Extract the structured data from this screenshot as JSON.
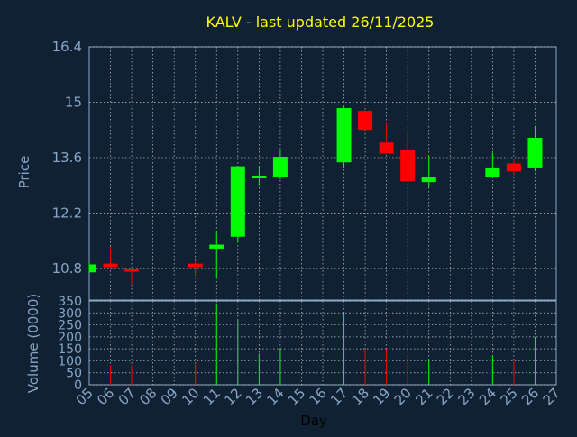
{
  "chart_data": {
    "type": "candlestick",
    "title": "KALV - last updated 26/11/2025",
    "xlabel": "Day",
    "ylabel_price": "Price",
    "ylabel_volume": "Volume (0000)",
    "x_ticks": [
      "05",
      "06",
      "07",
      "08",
      "09",
      "10",
      "11",
      "12",
      "13",
      "14",
      "15",
      "16",
      "17",
      "18",
      "19",
      "20",
      "21",
      "22",
      "23",
      "24",
      "25",
      "26",
      "27"
    ],
    "price_axis": {
      "ylim": [
        10.0,
        16.4
      ],
      "ticks": [
        "16.4",
        "15",
        "13.6",
        "12.2",
        "10.8"
      ]
    },
    "volume_axis": {
      "ylim": [
        0,
        350
      ],
      "ticks": [
        "350",
        "300",
        "250",
        "200",
        "150",
        "100",
        "50",
        "0"
      ]
    },
    "grid": true,
    "candles": [
      {
        "day": "05",
        "open": 10.7,
        "high": 10.95,
        "low": 10.7,
        "close": 10.9,
        "volume": 0
      },
      {
        "day": "06",
        "open": 10.92,
        "high": 11.35,
        "low": 10.82,
        "close": 10.83,
        "volume": 80
      },
      {
        "day": "07",
        "open": 10.78,
        "high": 10.8,
        "low": 10.4,
        "close": 10.72,
        "volume": 80
      },
      {
        "day": "10",
        "open": 10.92,
        "high": 10.98,
        "low": 10.6,
        "close": 10.83,
        "volume": 90
      },
      {
        "day": "11",
        "open": 11.3,
        "high": 11.75,
        "low": 10.55,
        "close": 11.4,
        "volume": 340
      },
      {
        "day": "12",
        "open": 11.6,
        "high": 13.38,
        "low": 11.45,
        "close": 13.38,
        "volume": 270
      },
      {
        "day": "13",
        "open": 13.1,
        "high": 13.38,
        "low": 12.9,
        "close": 13.12,
        "volume": 130
      },
      {
        "day": "14",
        "open": 13.12,
        "high": 13.8,
        "low": 13.05,
        "close": 13.62,
        "volume": 150
      },
      {
        "day": "17",
        "open": 13.48,
        "high": 14.9,
        "low": 13.35,
        "close": 14.85,
        "volume": 300
      },
      {
        "day": "18",
        "open": 14.78,
        "high": 14.8,
        "low": 14.25,
        "close": 14.3,
        "volume": 150
      },
      {
        "day": "19",
        "open": 13.98,
        "high": 14.5,
        "low": 13.7,
        "close": 13.7,
        "volume": 150
      },
      {
        "day": "20",
        "open": 13.8,
        "high": 14.2,
        "low": 13.0,
        "close": 13.0,
        "volume": 120
      },
      {
        "day": "21",
        "open": 12.98,
        "high": 13.65,
        "low": 12.85,
        "close": 13.12,
        "volume": 100
      },
      {
        "day": "24",
        "open": 13.12,
        "high": 13.72,
        "low": 13.08,
        "close": 13.35,
        "volume": 120
      },
      {
        "day": "25",
        "open": 13.45,
        "high": 13.52,
        "low": 13.15,
        "close": 13.25,
        "volume": 100
      },
      {
        "day": "26",
        "open": 13.35,
        "high": 14.4,
        "low": 13.25,
        "close": 14.1,
        "volume": 200
      }
    ]
  },
  "colors": {
    "background": "#0f2133",
    "up": "#00ff00",
    "down": "#ff0000",
    "axis_text": "#87a5c4",
    "title": "#ffff00",
    "xlabel": "#000000",
    "frame": "#87a5c4",
    "grid": "#c8c8c8"
  }
}
